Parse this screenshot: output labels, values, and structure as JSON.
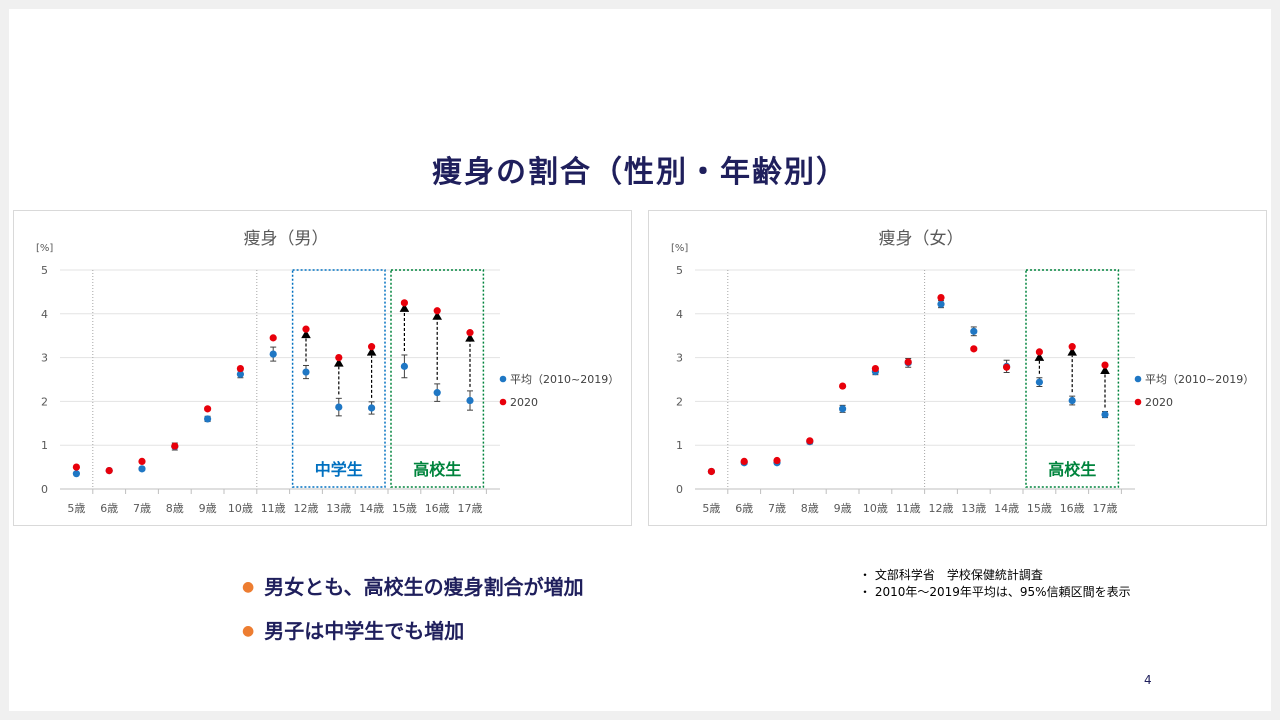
{
  "title": "痩身の割合（性別・年齢別）",
  "colors": {
    "avg": "#1f77c4",
    "y2020": "#e8000b",
    "jhs_box": "#0070c0",
    "hs_box": "#00843d",
    "title": "#1f1f5c",
    "bullet": "#ed7d31"
  },
  "charts": [
    {
      "chart_data": {
        "type": "scatter",
        "title": "痩身（男）",
        "ylabel": "[%]",
        "ylim": [
          0,
          5
        ],
        "yticks": [
          "0",
          "1",
          "2",
          "3",
          "4",
          "5"
        ],
        "categories": [
          "5歳",
          "6歳",
          "7歳",
          "8歳",
          "9歳",
          "10歳",
          "11歳",
          "12歳",
          "13歳",
          "14歳",
          "15歳",
          "16歳",
          "17歳"
        ],
        "series": [
          {
            "name": "平均（2010~2019）",
            "values": [
              0.35,
              0.42,
              0.46,
              0.97,
              1.6,
              2.62,
              3.08,
              2.67,
              1.87,
              1.85,
              2.8,
              2.2,
              2.02
            ],
            "err": [
              0.03,
              0.03,
              0.04,
              0.08,
              0.06,
              0.08,
              0.16,
              0.15,
              0.2,
              0.14,
              0.26,
              0.2,
              0.22
            ]
          },
          {
            "name": "2020",
            "values": [
              0.5,
              0.42,
              0.63,
              0.98,
              1.83,
              2.75,
              3.45,
              3.65,
              3.0,
              3.25,
              4.25,
              4.07,
              3.57
            ]
          }
        ],
        "arrows": [
          7,
          8,
          9,
          10,
          11,
          12
        ],
        "groups": [
          {
            "label": "中学生",
            "from": 7,
            "to": 9,
            "kind": "jhs"
          },
          {
            "label": "高校生",
            "from": 10,
            "to": 12,
            "kind": "hs"
          }
        ],
        "separators": [
          0,
          5
        ]
      }
    },
    {
      "chart_data": {
        "type": "scatter",
        "title": "痩身（女）",
        "ylabel": "[%]",
        "ylim": [
          0,
          5
        ],
        "yticks": [
          "0",
          "1",
          "2",
          "3",
          "4",
          "5"
        ],
        "categories": [
          "5歳",
          "6歳",
          "7歳",
          "8歳",
          "9歳",
          "10歳",
          "11歳",
          "12歳",
          "13歳",
          "14歳",
          "15歳",
          "16歳",
          "17歳"
        ],
        "series": [
          {
            "name": "平均（2010~2019）",
            "values": [
              0.4,
              0.6,
              0.6,
              1.08,
              1.83,
              2.68,
              2.88,
              4.22,
              3.6,
              2.8,
              2.44,
              2.02,
              1.7
            ],
            "err": [
              0.03,
              0.04,
              0.04,
              0.05,
              0.08,
              0.07,
              0.1,
              0.08,
              0.1,
              0.14,
              0.1,
              0.1,
              0.07
            ]
          },
          {
            "name": "2020",
            "values": [
              0.4,
              0.63,
              0.65,
              1.1,
              2.35,
              2.75,
              2.9,
              4.37,
              3.2,
              2.78,
              3.13,
              3.25,
              2.83
            ]
          }
        ],
        "arrows": [
          10,
          11,
          12
        ],
        "groups": [
          {
            "label": "高校生",
            "from": 10,
            "to": 12,
            "kind": "hs"
          }
        ],
        "separators": [
          0,
          6
        ]
      }
    }
  ],
  "bullets": [
    "男女とも、高校生の痩身割合が増加",
    "男子は中学生でも増加"
  ],
  "notes": [
    "・ 文部科学省　学校保健統計調査",
    "・ 2010年～2019年平均は、95%信頼区間を表示"
  ],
  "page_number": "4"
}
